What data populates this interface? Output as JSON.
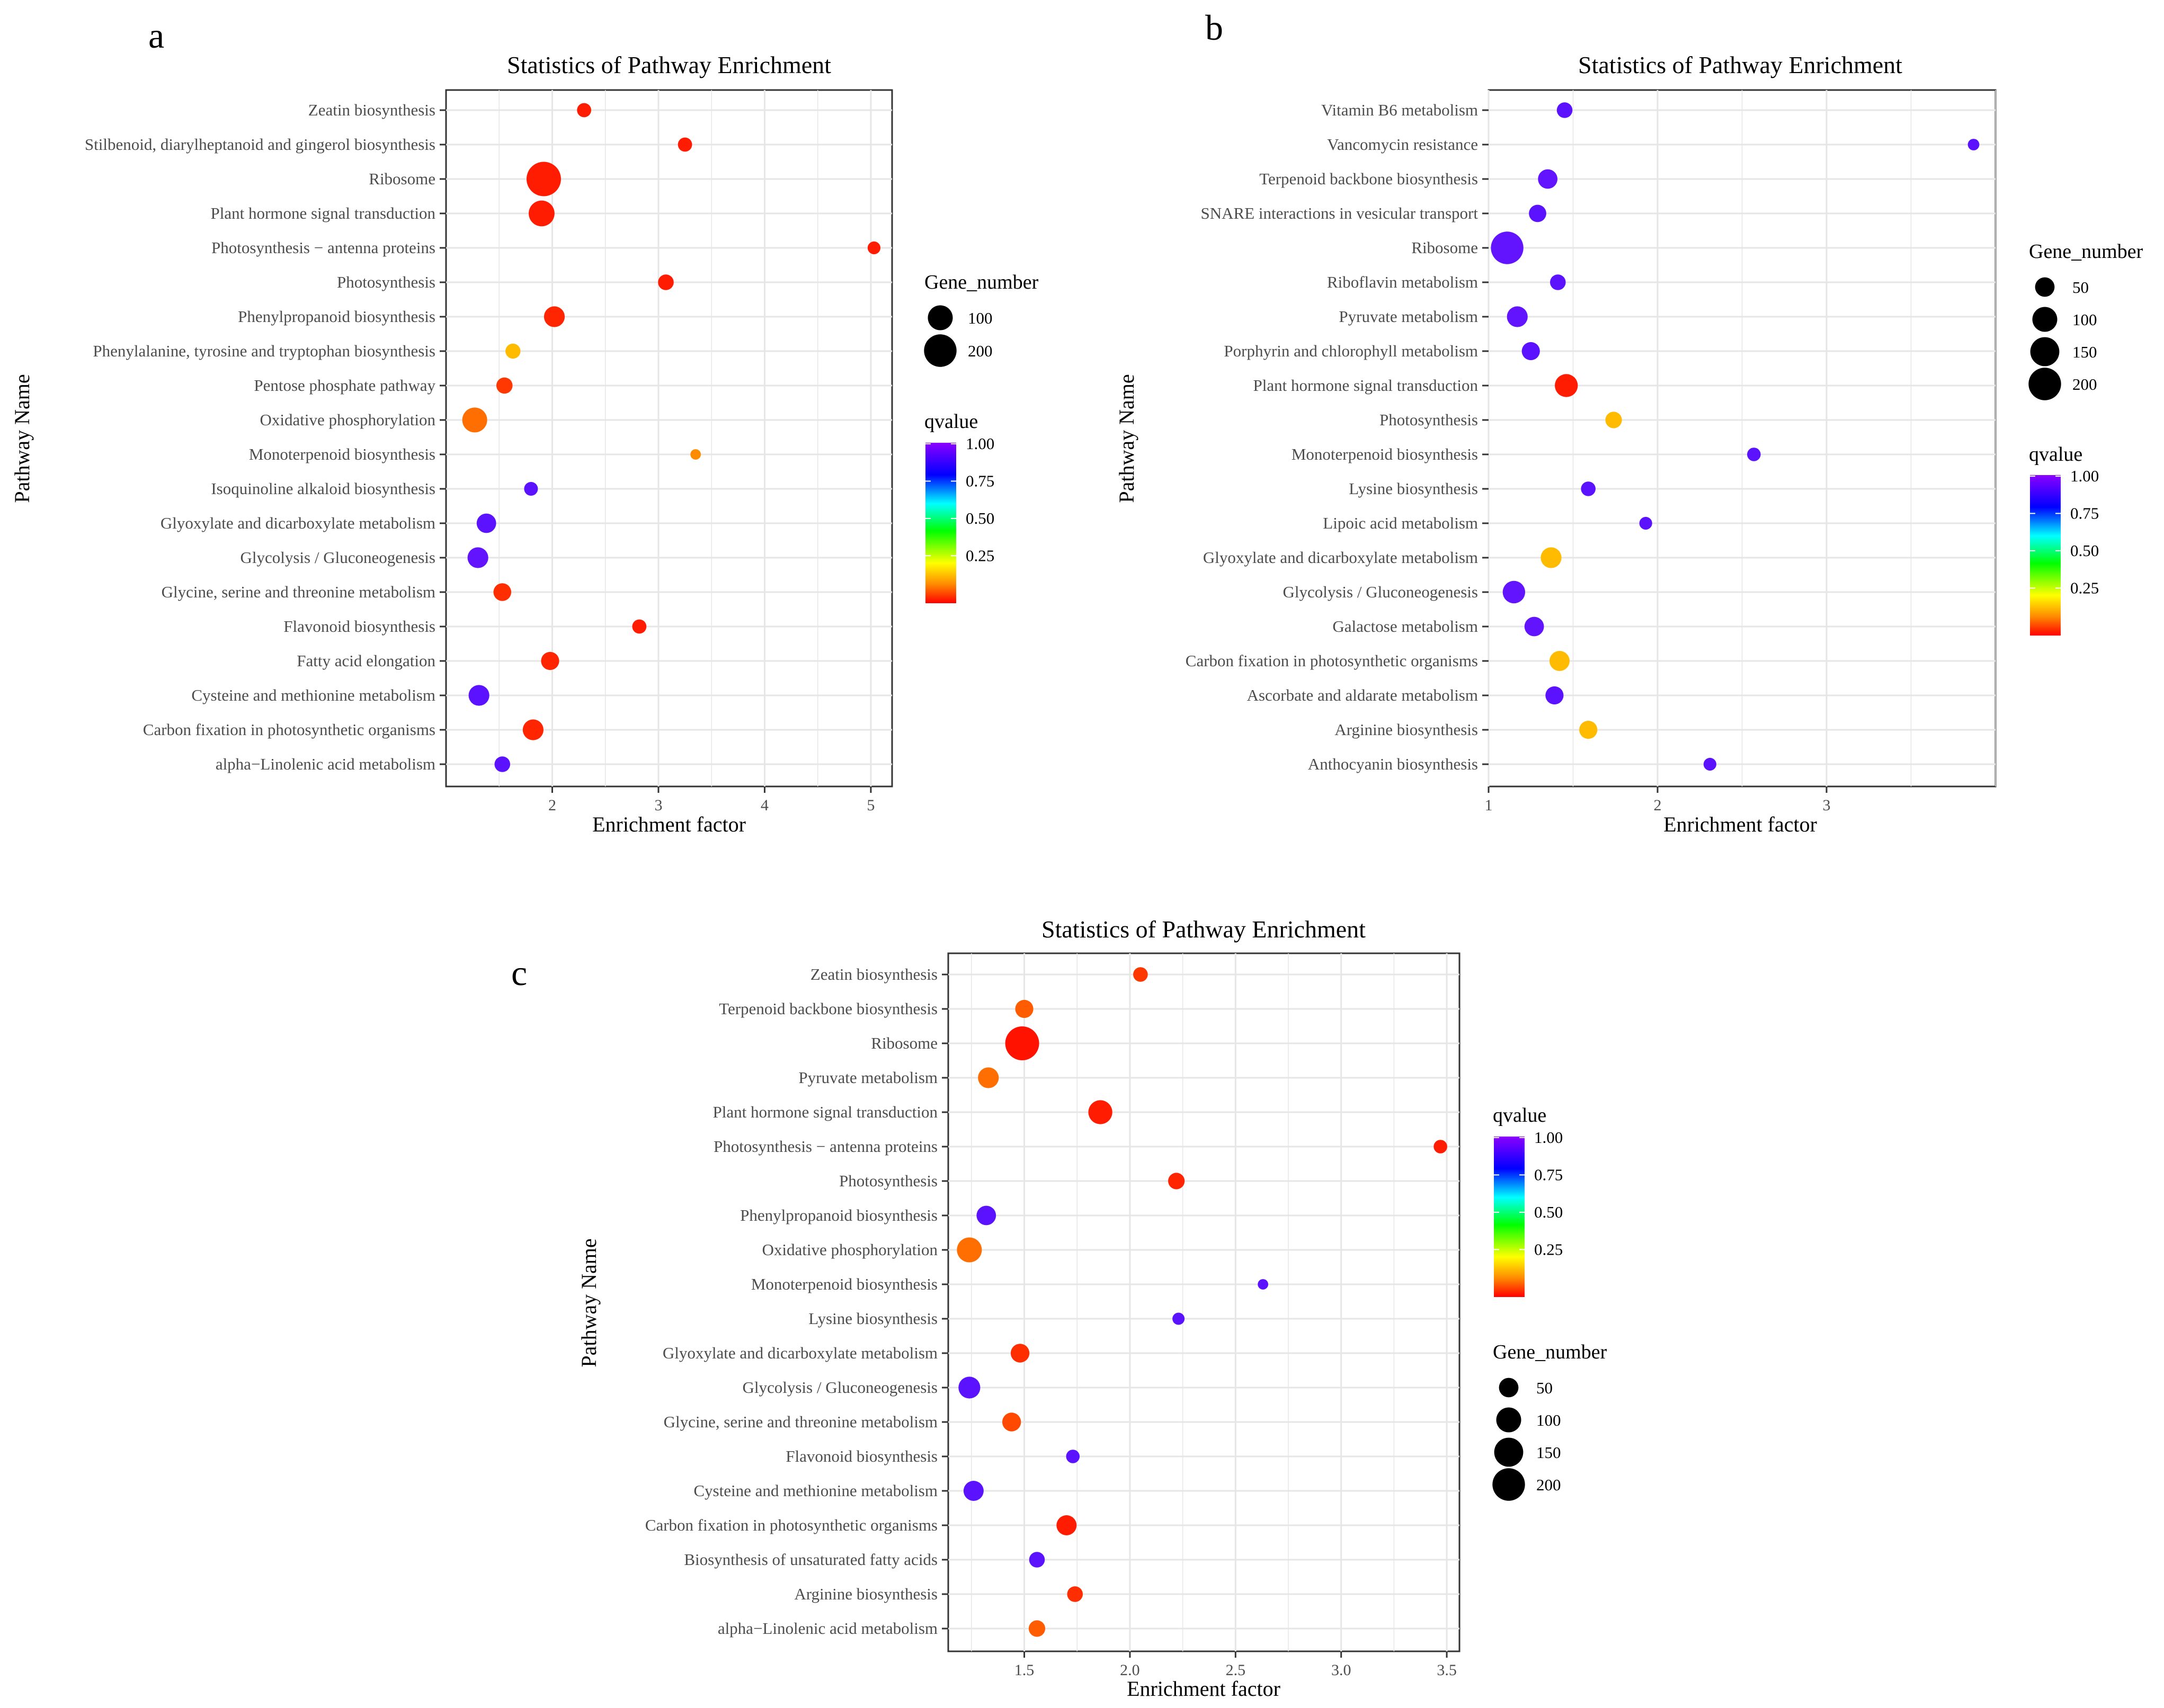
{
  "figure": {
    "panel_letters": [
      "a",
      "b",
      "c"
    ]
  },
  "chart_data": [
    {
      "panel": "a",
      "type": "scatter",
      "title": "Statistics of Pathway Enrichment",
      "xlabel": "Enrichment factor",
      "ylabel": "Pathway Name",
      "xlim": [
        1.0,
        5.2
      ],
      "xticks": [
        2,
        3,
        4,
        5
      ],
      "grid": true,
      "categories": [
        "Zeatin biosynthesis",
        "Stilbenoid, diarylheptanoid and gingerol biosynthesis",
        "Ribosome",
        "Plant hormone signal transduction",
        "Photosynthesis − antenna proteins",
        "Photosynthesis",
        "Phenylpropanoid biosynthesis",
        "Phenylalanine, tyrosine and tryptophan biosynthesis",
        "Pentose phosphate pathway",
        "Oxidative phosphorylation",
        "Monoterpenoid biosynthesis",
        "Isoquinoline alkaloid biosynthesis",
        "Glyoxylate and dicarboxylate metabolism",
        "Glycolysis / Gluconeogenesis",
        "Glycine, serine and threonine metabolism",
        "Flavonoid biosynthesis",
        "Fatty acid elongation",
        "Cysteine and methionine metabolism",
        "Carbon fixation in photosynthetic organisms",
        "alpha−Linolenic acid metabolism"
      ],
      "enrichment": [
        2.3,
        3.25,
        1.92,
        1.9,
        5.03,
        3.07,
        2.02,
        1.63,
        1.55,
        1.27,
        3.35,
        1.8,
        1.38,
        1.3,
        1.53,
        2.82,
        1.98,
        1.31,
        1.82,
        1.53
      ],
      "gene_number": [
        18,
        18,
        230,
        110,
        12,
        25,
        60,
        22,
        28,
        100,
        5,
        16,
        50,
        60,
        38,
        18,
        40,
        60,
        60,
        25
      ],
      "qvalue": [
        0.03,
        0.03,
        0.03,
        0.03,
        0.03,
        0.03,
        0.04,
        0.2,
        0.06,
        0.12,
        0.15,
        0.92,
        0.92,
        0.93,
        0.05,
        0.03,
        0.04,
        0.92,
        0.04,
        0.92
      ],
      "size_legend": {
        "title": "Gene_number",
        "values": [
          100,
          200
        ]
      },
      "color_legend": {
        "title": "qvalue",
        "ticks": [
          "1.00",
          "0.75",
          "0.50",
          "0.25"
        ]
      }
    },
    {
      "panel": "b",
      "type": "scatter",
      "title": "Statistics of Pathway Enrichment",
      "xlabel": "Enrichment factor",
      "ylabel": "Pathway Name",
      "xlim": [
        1.0,
        4.0
      ],
      "xticks": [
        1,
        2,
        3
      ],
      "grid": true,
      "categories": [
        "Vitamin B6 metabolism",
        "Vancomycin resistance",
        "Terpenoid backbone biosynthesis",
        "SNARE interactions in vesicular transport",
        "Ribosome",
        "Riboflavin metabolism",
        "Pyruvate metabolism",
        "Porphyrin and chlorophyll metabolism",
        "Plant hormone signal transduction",
        "Photosynthesis",
        "Monoterpenoid biosynthesis",
        "Lysine biosynthesis",
        "Lipoic acid metabolism",
        "Glyoxylate and dicarboxylate metabolism",
        "Glycolysis / Gluconeogenesis",
        "Galactose metabolism",
        "Carbon fixation in photosynthetic organisms",
        "Ascorbate and aldarate metabolism",
        "Arginine biosynthesis",
        "Anthocyanin biosynthesis"
      ],
      "enrichment": [
        1.45,
        3.87,
        1.35,
        1.29,
        1.11,
        1.41,
        1.17,
        1.25,
        1.46,
        1.74,
        2.57,
        1.59,
        1.93,
        1.37,
        1.15,
        1.27,
        1.42,
        1.39,
        1.59,
        2.31
      ],
      "gene_number": [
        25,
        8,
        50,
        35,
        200,
        25,
        60,
        40,
        80,
        30,
        15,
        20,
        12,
        60,
        75,
        50,
        55,
        40,
        40,
        12
      ],
      "qvalue": [
        0.92,
        0.92,
        0.93,
        0.92,
        0.93,
        0.92,
        0.93,
        0.92,
        0.03,
        0.2,
        0.92,
        0.92,
        0.92,
        0.2,
        0.93,
        0.93,
        0.2,
        0.92,
        0.2,
        0.92
      ],
      "size_legend": {
        "title": "Gene_number",
        "values": [
          50,
          100,
          150,
          200
        ]
      },
      "color_legend": {
        "title": "qvalue",
        "ticks": [
          "1.00",
          "0.75",
          "0.50",
          "0.25"
        ]
      }
    },
    {
      "panel": "c",
      "type": "scatter",
      "title": "Statistics of Pathway Enrichment",
      "xlabel": "Enrichment factor",
      "ylabel": "Pathway Name",
      "xlim": [
        1.14,
        3.56
      ],
      "xticks": [
        1.5,
        2.0,
        2.5,
        3.0,
        3.5
      ],
      "xtick_labels": [
        "1.5",
        "2.0",
        "2.5",
        "3.0",
        "3.5"
      ],
      "grid": true,
      "categories": [
        "Zeatin biosynthesis",
        "Terpenoid backbone biosynthesis",
        "Ribosome",
        "Pyruvate metabolism",
        "Plant hormone signal transduction",
        "Photosynthesis − antenna proteins",
        "Photosynthesis",
        "Phenylpropanoid biosynthesis",
        "Oxidative phosphorylation",
        "Monoterpenoid biosynthesis",
        "Lysine biosynthesis",
        "Glyoxylate and dicarboxylate metabolism",
        "Glycolysis / Gluconeogenesis",
        "Glycine, serine and threonine metabolism",
        "Flavonoid biosynthesis",
        "Cysteine and methionine metabolism",
        "Carbon fixation in photosynthetic organisms",
        "Biosynthesis of unsaturated fatty acids",
        "Arginine biosynthesis",
        "alpha−Linolenic acid metabolism"
      ],
      "enrichment": [
        2.05,
        1.5,
        1.49,
        1.33,
        1.86,
        3.47,
        2.22,
        1.32,
        1.24,
        2.63,
        2.23,
        1.48,
        1.24,
        1.44,
        1.73,
        1.26,
        1.7,
        1.56,
        1.74,
        1.56
      ],
      "gene_number": [
        20,
        40,
        220,
        60,
        90,
        15,
        30,
        50,
        100,
        5,
        10,
        45,
        70,
        45,
        15,
        55,
        55,
        25,
        25,
        30
      ],
      "qvalue": [
        0.06,
        0.1,
        0.02,
        0.12,
        0.03,
        0.03,
        0.04,
        0.92,
        0.12,
        0.92,
        0.92,
        0.05,
        0.92,
        0.08,
        0.92,
        0.92,
        0.03,
        0.92,
        0.05,
        0.1
      ],
      "size_legend": {
        "title": "Gene_number",
        "values": [
          50,
          100,
          150,
          200
        ]
      },
      "color_legend": {
        "title": "qvalue",
        "ticks": [
          "1.00",
          "0.75",
          "0.50",
          "0.25"
        ]
      }
    }
  ]
}
